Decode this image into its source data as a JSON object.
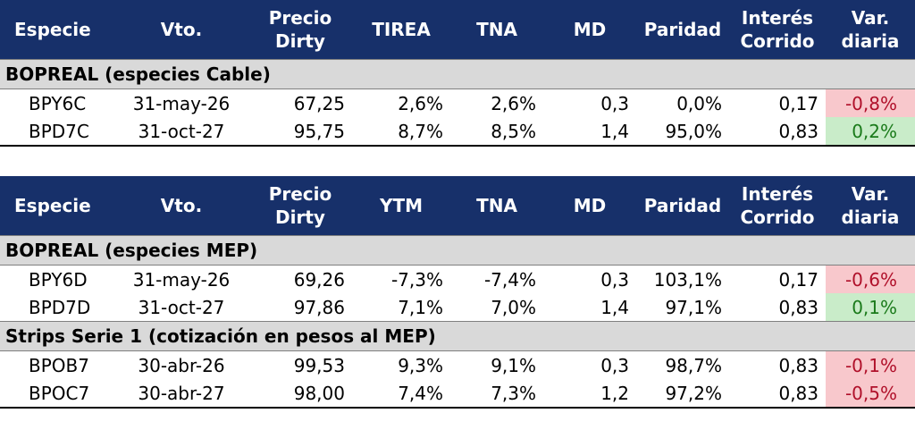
{
  "table1": {
    "headers": [
      "Especie",
      "Vto.",
      "Precio\nDirty",
      "TIREA",
      "TNA",
      "MD",
      "Paridad",
      "Interés\nCorrido",
      "Var.\ndiaria"
    ],
    "section": "BOPREAL (especies Cable)",
    "rows": [
      {
        "especie": "BPY6C",
        "vto": "31-may-26",
        "precio": "67,25",
        "tir": "2,6%",
        "tna": "2,6%",
        "md": "0,3",
        "paridad": "0,0%",
        "interes": "0,17",
        "var": "-0,8%"
      },
      {
        "especie": "BPD7C",
        "vto": "31-oct-27",
        "precio": "95,75",
        "tir": "8,7%",
        "tna": "8,5%",
        "md": "1,4",
        "paridad": "95,0%",
        "interes": "0,83",
        "var": "0,2%"
      }
    ]
  },
  "table2": {
    "headers": [
      "Especie",
      "Vto.",
      "Precio\nDirty",
      "YTM",
      "TNA",
      "MD",
      "Paridad",
      "Interés\nCorrido",
      "Var.\ndiaria"
    ],
    "section1": "BOPREAL (especies MEP)",
    "rows1": [
      {
        "especie": "BPY6D",
        "vto": "31-may-26",
        "precio": "69,26",
        "tir": "-7,3%",
        "tna": "-7,4%",
        "md": "0,3",
        "paridad": "103,1%",
        "interes": "0,17",
        "var": "-0,6%"
      },
      {
        "especie": "BPD7D",
        "vto": "31-oct-27",
        "precio": "97,86",
        "tir": "7,1%",
        "tna": "7,0%",
        "md": "1,4",
        "paridad": "97,1%",
        "interes": "0,83",
        "var": "0,1%"
      }
    ],
    "section2": "Strips Serie 1 (cotización en pesos al MEP)",
    "rows2": [
      {
        "especie": "BPOB7",
        "vto": "30-abr-26",
        "precio": "99,53",
        "tir": "9,3%",
        "tna": "9,1%",
        "md": "0,3",
        "paridad": "98,7%",
        "interes": "0,83",
        "var": "-0,1%"
      },
      {
        "especie": "BPOC7",
        "vto": "30-abr-27",
        "precio": "98,00",
        "tir": "7,4%",
        "tna": "7,3%",
        "md": "1,2",
        "paridad": "97,2%",
        "interes": "0,83",
        "var": "-0,5%"
      }
    ]
  },
  "colors": {
    "header_bg": "#17306a",
    "section_bg": "#d9d9d9",
    "negative_bg": "#f8c8cc",
    "positive_bg": "#c9ecc9"
  }
}
